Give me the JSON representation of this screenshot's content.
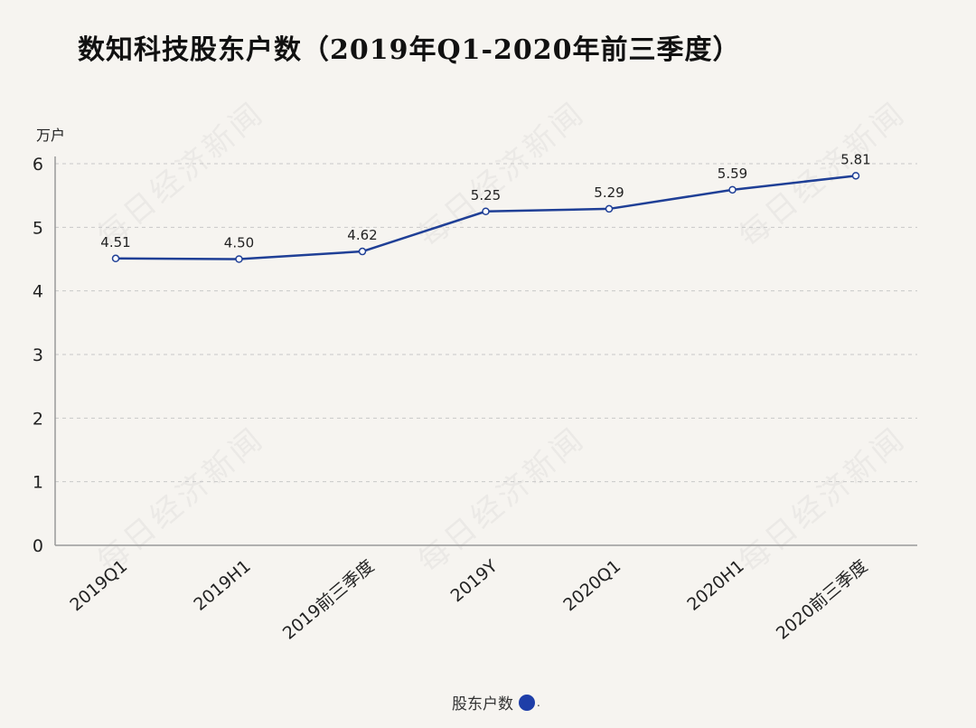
{
  "title": "数知科技股东户数（2019年Q1-2020年前三季度）",
  "watermark": "每日经济新闻",
  "colors": {
    "line": "#1f3f96",
    "legend_dot": "#1e3ea8",
    "grid": "#c8c8c8",
    "axis": "#999999",
    "text": "#222222"
  },
  "chart_data": {
    "type": "line",
    "categories": [
      "2019Q1",
      "2019H1",
      "2019前三季度",
      "2019Y",
      "2020Q1",
      "2020H1",
      "2020前三季度"
    ],
    "series": [
      {
        "name": "股东户数",
        "values": [
          4.51,
          4.5,
          4.62,
          5.25,
          5.29,
          5.59,
          5.81
        ]
      }
    ],
    "data_labels": [
      "4.51",
      "4.50",
      "4.62",
      "5.25",
      "5.29",
      "5.59",
      "5.81"
    ],
    "ylabel": "万户",
    "yticks": [
      "0",
      "1",
      "2",
      "3",
      "4",
      "5",
      "6"
    ],
    "ylim": [
      0,
      6
    ],
    "grid": true,
    "legend": "bottom-center"
  }
}
